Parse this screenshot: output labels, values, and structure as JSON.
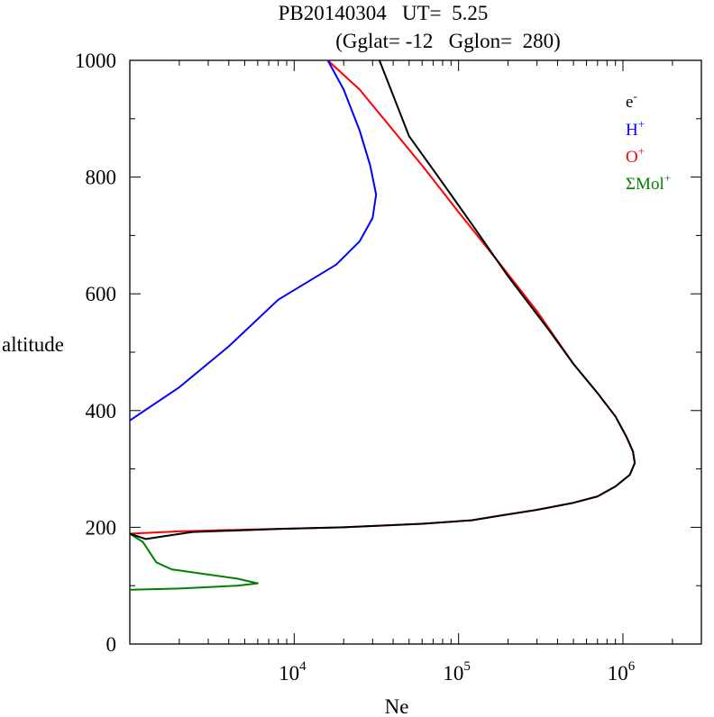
{
  "chart_data": {
    "type": "line",
    "title": "PB20140304   UT=  5.25",
    "subtitle": "(Gglat= -12   Gglon=  280)",
    "xlabel": "Ne",
    "ylabel": "altitude",
    "x_scale": "log",
    "xlim": [
      1000,
      3000000
    ],
    "ylim": [
      0,
      1000
    ],
    "x_ticks": [
      10000,
      100000,
      1000000
    ],
    "x_tick_labels": [
      {
        "base": "10",
        "exp": "4"
      },
      {
        "base": "10",
        "exp": "5"
      },
      {
        "base": "10",
        "exp": "6"
      }
    ],
    "y_ticks": [
      0,
      200,
      400,
      600,
      800,
      1000
    ],
    "y_tick_labels": [
      "0",
      "200",
      "400",
      "600",
      "800",
      "1000"
    ],
    "grid": false,
    "legend_position": "top-right",
    "legend": [
      {
        "base": "e",
        "sup": "-",
        "color": "#000000"
      },
      {
        "base": "H",
        "sup": "+",
        "color": "#0000ff"
      },
      {
        "base": "O",
        "sup": "+",
        "color": "#ff0000"
      },
      {
        "base": "ΣMol",
        "sup": "+",
        "color": "#008000"
      }
    ],
    "series": [
      {
        "color": "#ff0000",
        "points": [
          [
            1000,
            189
          ],
          [
            2000,
            193
          ],
          [
            5000,
            196
          ],
          [
            20000,
            200
          ],
          [
            60000,
            206
          ],
          [
            120000,
            212
          ],
          [
            180000,
            220
          ],
          [
            300000,
            230
          ],
          [
            500000,
            242
          ],
          [
            700000,
            253
          ],
          [
            900000,
            270
          ],
          [
            1100000,
            290
          ],
          [
            1180000,
            310
          ],
          [
            1150000,
            330
          ],
          [
            1050000,
            355
          ],
          [
            900000,
            390
          ],
          [
            700000,
            430
          ],
          [
            500000,
            480
          ],
          [
            300000,
            570
          ],
          [
            180000,
            650
          ],
          [
            100000,
            740
          ],
          [
            60000,
            820
          ],
          [
            35000,
            900
          ],
          [
            25000,
            950
          ],
          [
            16000,
            1000
          ]
        ]
      },
      {
        "color": "#0000ff",
        "points": [
          [
            1000,
            383
          ],
          [
            2000,
            440
          ],
          [
            4000,
            510
          ],
          [
            8000,
            590
          ],
          [
            18000,
            650
          ],
          [
            25000,
            690
          ],
          [
            30000,
            730
          ],
          [
            31500,
            770
          ],
          [
            29000,
            820
          ],
          [
            25000,
            880
          ],
          [
            20000,
            950
          ],
          [
            16000,
            1000
          ]
        ]
      },
      {
        "color": "#008000",
        "points": [
          [
            1000,
            189
          ],
          [
            1200,
            175
          ],
          [
            1450,
            140
          ],
          [
            1800,
            128
          ],
          [
            4500,
            112
          ],
          [
            6000,
            104
          ],
          [
            4500,
            100
          ],
          [
            2000,
            95
          ],
          [
            1000,
            93
          ]
        ]
      },
      {
        "color": "#000000",
        "points": [
          [
            1000,
            189
          ],
          [
            1250,
            180
          ],
          [
            2400,
            192
          ],
          [
            8000,
            197
          ],
          [
            20000,
            200
          ],
          [
            60000,
            206
          ],
          [
            120000,
            212
          ],
          [
            180000,
            220
          ],
          [
            300000,
            230
          ],
          [
            500000,
            242
          ],
          [
            700000,
            253
          ],
          [
            900000,
            270
          ],
          [
            1100000,
            290
          ],
          [
            1180000,
            310
          ],
          [
            1150000,
            330
          ],
          [
            1050000,
            355
          ],
          [
            900000,
            390
          ],
          [
            700000,
            430
          ],
          [
            500000,
            480
          ],
          [
            350000,
            540
          ],
          [
            200000,
            630
          ],
          [
            120000,
            720
          ],
          [
            80000,
            790
          ],
          [
            50000,
            870
          ],
          [
            33000,
            1000
          ]
        ]
      }
    ]
  }
}
